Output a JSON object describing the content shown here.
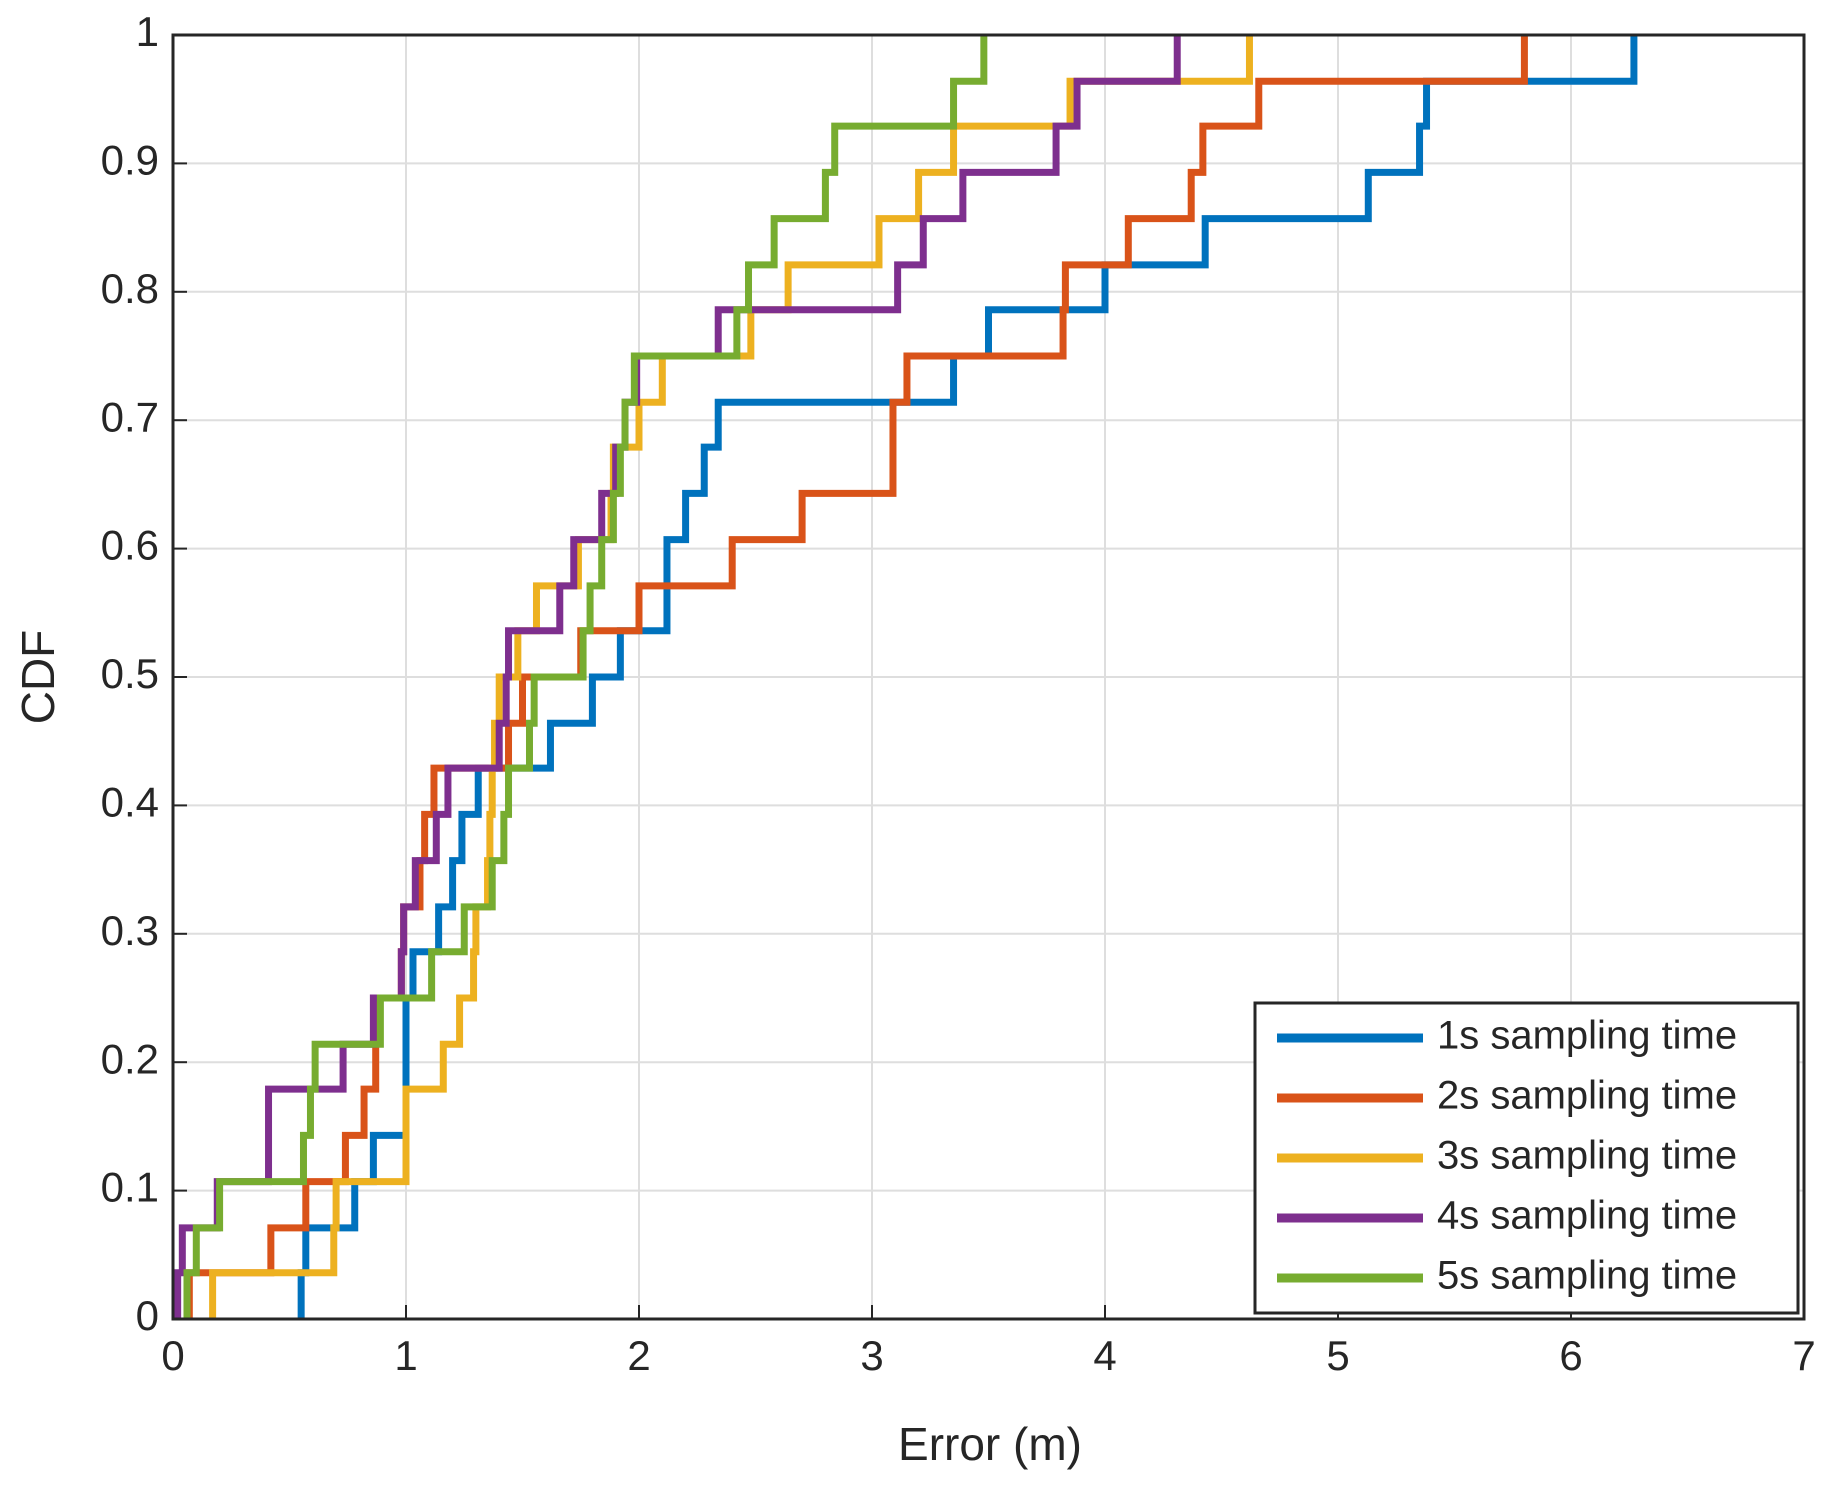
{
  "chart_data": {
    "type": "stairs",
    "xlabel": "Error (m)",
    "ylabel": "CDF",
    "xlim": [
      0,
      7
    ],
    "xticks": [
      0,
      1,
      2,
      3,
      4,
      5,
      6,
      7
    ],
    "ylim": [
      0,
      1
    ],
    "yticks": [
      0,
      0.1,
      0.2,
      0.3,
      0.4,
      0.5,
      0.6,
      0.7,
      0.8,
      0.9,
      1
    ],
    "grid": true,
    "legend": "lower right",
    "series": [
      {
        "name": "1s sampling time",
        "color": "#0072bd",
        "x": [
          0.55,
          0.57,
          0.78,
          0.86,
          1.0,
          1.0,
          1.0,
          1.03,
          1.14,
          1.2,
          1.24,
          1.31,
          1.62,
          1.8,
          1.92,
          2.12,
          2.12,
          2.2,
          2.28,
          2.34,
          3.35,
          3.5,
          4.0,
          4.43,
          5.13,
          5.35,
          5.38,
          6.27
        ],
        "values": [
          0.036,
          0.071,
          0.107,
          0.143,
          0.179,
          0.214,
          0.25,
          0.286,
          0.321,
          0.357,
          0.393,
          0.429,
          0.464,
          0.5,
          0.536,
          0.571,
          0.607,
          0.643,
          0.679,
          0.714,
          0.75,
          0.786,
          0.821,
          0.857,
          0.893,
          0.929,
          0.964,
          1
        ]
      },
      {
        "name": "2s sampling time",
        "color": "#d95319",
        "x": [
          0.07,
          0.42,
          0.57,
          0.74,
          0.82,
          0.87,
          0.87,
          0.98,
          0.99,
          1.06,
          1.08,
          1.12,
          1.44,
          1.5,
          1.75,
          2.0,
          2.4,
          2.7,
          3.09,
          3.09,
          3.15,
          3.82,
          3.83,
          4.1,
          4.37,
          4.42,
          4.66,
          5.8
        ],
        "values": [
          0.036,
          0.071,
          0.107,
          0.143,
          0.179,
          0.214,
          0.25,
          0.286,
          0.321,
          0.357,
          0.393,
          0.429,
          0.464,
          0.5,
          0.536,
          0.571,
          0.607,
          0.643,
          0.679,
          0.714,
          0.75,
          0.786,
          0.821,
          0.857,
          0.893,
          0.929,
          0.964,
          1
        ]
      },
      {
        "name": "3s sampling time",
        "color": "#edb120",
        "x": [
          0.17,
          0.69,
          0.7,
          1.0,
          1.0,
          1.16,
          1.23,
          1.29,
          1.3,
          1.35,
          1.36,
          1.37,
          1.38,
          1.4,
          1.48,
          1.56,
          1.74,
          1.88,
          1.89,
          2.0,
          2.1,
          2.48,
          2.64,
          3.03,
          3.2,
          3.35,
          3.85,
          4.62
        ],
        "values": [
          0.036,
          0.071,
          0.107,
          0.143,
          0.179,
          0.214,
          0.25,
          0.286,
          0.321,
          0.357,
          0.393,
          0.429,
          0.464,
          0.5,
          0.536,
          0.571,
          0.607,
          0.643,
          0.679,
          0.714,
          0.75,
          0.786,
          0.821,
          0.857,
          0.893,
          0.929,
          0.964,
          1
        ]
      },
      {
        "name": "4s sampling time",
        "color": "#7e2f8e",
        "x": [
          0.02,
          0.04,
          0.19,
          0.41,
          0.41,
          0.73,
          0.86,
          0.98,
          0.99,
          1.04,
          1.13,
          1.18,
          1.4,
          1.43,
          1.44,
          1.66,
          1.72,
          1.84,
          1.9,
          1.94,
          1.99,
          2.34,
          3.11,
          3.22,
          3.39,
          3.79,
          3.88,
          4.31
        ],
        "values": [
          0.036,
          0.071,
          0.107,
          0.143,
          0.179,
          0.214,
          0.25,
          0.286,
          0.321,
          0.357,
          0.393,
          0.429,
          0.464,
          0.5,
          0.536,
          0.571,
          0.607,
          0.643,
          0.679,
          0.714,
          0.75,
          0.786,
          0.821,
          0.857,
          0.893,
          0.929,
          0.964,
          1
        ]
      },
      {
        "name": "5s sampling time",
        "color": "#77ac30",
        "x": [
          0.06,
          0.1,
          0.2,
          0.56,
          0.59,
          0.61,
          0.89,
          1.11,
          1.25,
          1.37,
          1.42,
          1.44,
          1.53,
          1.55,
          1.76,
          1.79,
          1.84,
          1.89,
          1.92,
          1.94,
          1.98,
          2.42,
          2.47,
          2.58,
          2.8,
          2.84,
          3.35,
          3.48
        ],
        "values": [
          0.036,
          0.071,
          0.107,
          0.143,
          0.179,
          0.214,
          0.25,
          0.286,
          0.321,
          0.357,
          0.393,
          0.429,
          0.464,
          0.5,
          0.536,
          0.571,
          0.607,
          0.643,
          0.679,
          0.714,
          0.75,
          0.786,
          0.821,
          0.857,
          0.893,
          0.929,
          0.964,
          1
        ]
      }
    ]
  }
}
